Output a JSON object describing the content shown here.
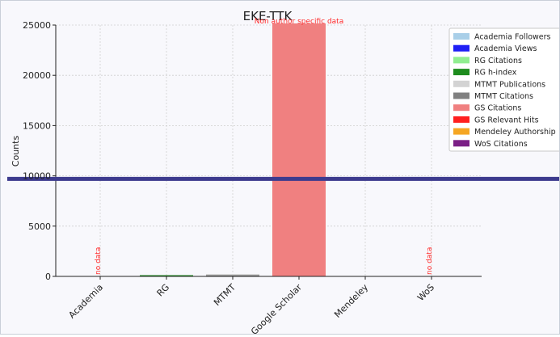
{
  "chart_data": {
    "type": "bar",
    "title": "EKE-TTK",
    "ylabel": "Counts",
    "xlabel": "",
    "ylim": [
      0,
      25000
    ],
    "yticks": [
      0,
      5000,
      10000,
      15000,
      20000,
      25000
    ],
    "ytick_labels": [
      "0",
      "5000",
      "10000",
      "15000",
      "20000",
      "25000"
    ],
    "grid": true,
    "legend_position": "top-right",
    "categories": [
      "Academia",
      "RG",
      "MTMT",
      "Google Scholar",
      "Mendeley",
      "WoS"
    ],
    "series": [
      {
        "name": "Academia Followers",
        "color": "#a9cfe8",
        "values": [
          0,
          0,
          0,
          0,
          0,
          0
        ]
      },
      {
        "name": "Academia Views",
        "color": "#1f1ff5",
        "values": [
          0,
          0,
          0,
          0,
          0,
          0
        ]
      },
      {
        "name": "RG Citations",
        "color": "#90ee90",
        "values": [
          0,
          40,
          0,
          0,
          0,
          0
        ]
      },
      {
        "name": "RG h-index",
        "color": "#1e8c1e",
        "values": [
          0,
          5,
          0,
          0,
          0,
          0
        ]
      },
      {
        "name": "MTMT Publications",
        "color": "#d3d3d3",
        "values": [
          0,
          0,
          230,
          0,
          0,
          0
        ]
      },
      {
        "name": "MTMT Citations",
        "color": "#808080",
        "values": [
          0,
          0,
          60,
          0,
          0,
          0
        ]
      },
      {
        "name": "GS Citations",
        "color": "#f08080",
        "values": [
          0,
          0,
          0,
          25200,
          0,
          0
        ]
      },
      {
        "name": "GS Relevant Hits",
        "color": "#ff1f1f",
        "values": [
          0,
          0,
          0,
          0,
          0,
          0
        ]
      },
      {
        "name": "Mendeley Authorship",
        "color": "#f5a623",
        "values": [
          0,
          0,
          0,
          0,
          0,
          0
        ]
      },
      {
        "name": "WoS Citations",
        "color": "#7b1f86",
        "values": [
          0,
          0,
          0,
          0,
          0,
          0
        ]
      }
    ],
    "reference_line": {
      "value": 9700,
      "color": "#3d3b8e"
    },
    "annotations": [
      {
        "text": "Non author specific data",
        "category": "Google Scholar",
        "color": "#ff2b2b"
      },
      {
        "text": "no data",
        "category": "Academia",
        "color": "#ff2b2b"
      },
      {
        "text": "no data",
        "category": "WoS",
        "color": "#ff2b2b"
      }
    ]
  }
}
